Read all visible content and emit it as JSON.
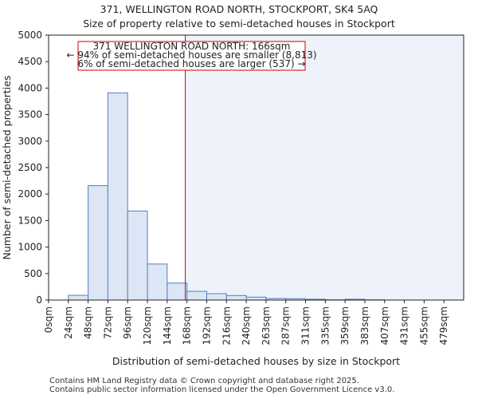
{
  "title_line1": "371, WELLINGTON ROAD NORTH, STOCKPORT, SK4 5AQ",
  "title_line2": "Size of property relative to semi-detached houses in Stockport",
  "footer_line1": "Contains HM Land Registry data © Crown copyright and database right 2025.",
  "footer_line2": "Contains public sector information licensed under the Open Government Licence v3.0.",
  "annotation": {
    "line1": "371 WELLINGTON ROAD NORTH: 166sqm",
    "line2": "← 94% of semi-detached houses are smaller (8,813)",
    "line3": "6% of semi-detached houses are larger (537) →"
  },
  "colors": {
    "bar_fill": "#dce6f4",
    "bar_stroke": "#5580c0",
    "marker_line": "#cc0000",
    "shade": "#eef2fb",
    "annotation_border": "#cc0000"
  },
  "chart_data": {
    "type": "bar",
    "categories": [
      "0sqm",
      "24sqm",
      "48sqm",
      "72sqm",
      "96sqm",
      "120sqm",
      "144sqm",
      "168sqm",
      "192sqm",
      "216sqm",
      "240sqm",
      "263sqm",
      "287sqm",
      "311sqm",
      "335sqm",
      "359sqm",
      "383sqm",
      "407sqm",
      "431sqm",
      "455sqm",
      "479sqm"
    ],
    "values": [
      0,
      90,
      2160,
      3910,
      1680,
      680,
      320,
      165,
      120,
      85,
      55,
      30,
      25,
      15,
      5,
      15,
      5,
      0,
      0,
      0,
      0
    ],
    "xlabel": "Distribution of semi-detached houses by size in Stockport",
    "ylabel": "Number of semi-detached properties",
    "ylim": [
      0,
      5000
    ],
    "yticks": [
      0,
      500,
      1000,
      1500,
      2000,
      2500,
      3000,
      3500,
      4000,
      4500,
      5000
    ],
    "marker_value": 166,
    "grid": false
  }
}
